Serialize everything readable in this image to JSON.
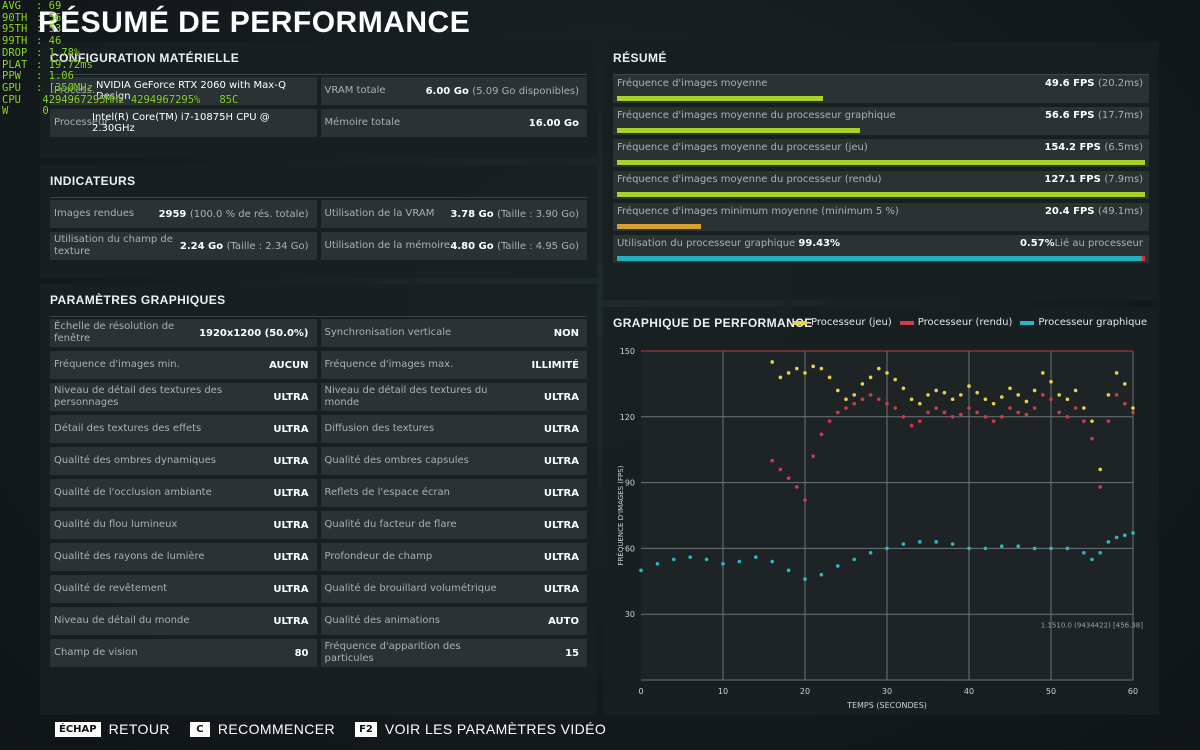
{
  "page_title": "RÉSUMÉ DE PERFORMANCE",
  "overlay": [
    {
      "k": "AVG",
      "v": ": 69"
    },
    {
      "k": "90TH",
      "v": ": 56"
    },
    {
      "k": "95TH",
      "v": ": 53"
    },
    {
      "k": "99TH",
      "v": ": 46"
    },
    {
      "k": "DROP",
      "v": ": 1.78%"
    },
    {
      "k": "PLAT",
      "v": ": 19.72ms"
    },
    {
      "k": "PPW",
      "v": ": 1.06"
    },
    {
      "k": "GPU",
      "v": ": [35ØMHz"
    },
    {
      "k": "CPU",
      "v": " 4294967295MHz 4294967295%   85C"
    },
    {
      "k": "W",
      "v": " 0"
    }
  ],
  "hardware": {
    "title": "CONFIGURATION MATÉRIELLE",
    "gpu_label": "Process.",
    "gpu_value": "NVIDIA GeForce RTX 2060 with Max-Q Design",
    "cpu_label": "Processeur",
    "cpu_value": "Intel(R) Core(TM) i7-10875H CPU @ 2.30GHz",
    "vram_label": "VRAM totale",
    "vram_value": "6.00 Go",
    "vram_sub": "(5.09 Go disponibles)",
    "mem_label": "Mémoire totale",
    "mem_value": "16.00 Go"
  },
  "indicators": {
    "title": "INDICATEURS",
    "frames_label": "Images rendues",
    "frames_value": "2959",
    "frames_sub": "(100.0 % de rés. totale)",
    "vram_use_label": "Utilisation de la VRAM",
    "vram_use_value": "3.78 Go",
    "vram_use_sub": "(Taille : 3.90 Go)",
    "tex_label": "Utilisation du champ de texture",
    "tex_value": "2.24 Go",
    "tex_sub": "(Taille : 2.34 Go)",
    "mem_use_label": "Utilisation de la mémoire",
    "mem_use_value": "4.80 Go",
    "mem_use_sub": "(Taille : 4.95 Go)"
  },
  "settings": {
    "title": "PARAMÈTRES GRAPHIQUES",
    "rows": [
      [
        {
          "label": "Échelle de résolution de fenêtre",
          "value": "1920x1200 (50.0%)"
        },
        {
          "label": "Synchronisation verticale",
          "value": "NON"
        }
      ],
      [
        {
          "label": "Fréquence d'images min.",
          "value": "AUCUN"
        },
        {
          "label": "Fréquence d'images max.",
          "value": "ILLIMITÉ"
        }
      ],
      [
        {
          "label": "Niveau de détail des textures des personnages",
          "value": "ULTRA"
        },
        {
          "label": "Niveau de détail des textures du monde",
          "value": "ULTRA"
        }
      ],
      [
        {
          "label": "Détail des textures des effets",
          "value": "ULTRA"
        },
        {
          "label": "Diffusion des textures",
          "value": "ULTRA"
        }
      ],
      [
        {
          "label": "Qualité des ombres dynamiques",
          "value": "ULTRA"
        },
        {
          "label": "Qualité des ombres capsules",
          "value": "ULTRA"
        }
      ],
      [
        {
          "label": "Qualité de l'occlusion ambiante",
          "value": "ULTRA"
        },
        {
          "label": "Reflets de l'espace écran",
          "value": "ULTRA"
        }
      ],
      [
        {
          "label": "Qualité du flou lumineux",
          "value": "ULTRA"
        },
        {
          "label": "Qualité du facteur de flare",
          "value": "ULTRA"
        }
      ],
      [
        {
          "label": "Qualité des rayons de lumière",
          "value": "ULTRA"
        },
        {
          "label": "Profondeur de champ",
          "value": "ULTRA"
        }
      ],
      [
        {
          "label": "Qualité de revêtement",
          "value": "ULTRA"
        },
        {
          "label": "Qualité de brouillard volumétrique",
          "value": "ULTRA"
        }
      ],
      [
        {
          "label": "Niveau de détail du monde",
          "value": "ULTRA"
        },
        {
          "label": "Qualité des animations",
          "value": "AUTO"
        }
      ],
      [
        {
          "label": "Champ de vision",
          "value": "80"
        },
        {
          "label": "Fréquence d'apparition des particules",
          "value": "15"
        }
      ]
    ]
  },
  "summary": {
    "title": "RÉSUMÉ",
    "rows": [
      {
        "label": "Fréquence d'images moyenne",
        "value": "49.6 FPS",
        "sub": "(20.2ms)",
        "fill": 0.39,
        "color": "#a8d12b"
      },
      {
        "label": "Fréquence d'images moyenne du processeur graphique",
        "value": "56.6 FPS",
        "sub": "(17.7ms)",
        "fill": 0.46,
        "color": "#a8d12b"
      },
      {
        "label": "Fréquence d'images moyenne du processeur (jeu)",
        "value": "154.2 FPS",
        "sub": "(6.5ms)",
        "fill": 1.0,
        "color": "#a8d12b"
      },
      {
        "label": "Fréquence d'images moyenne du processeur (rendu)",
        "value": "127.1 FPS",
        "sub": "(7.9ms)",
        "fill": 1.0,
        "color": "#a8d12b"
      },
      {
        "label": "Fréquence d'images minimum moyenne (minimum 5 %)",
        "value": "20.4 FPS",
        "sub": "(49.1ms)",
        "fill": 0.16,
        "color": "#d9a02e"
      }
    ],
    "gpu_row": {
      "label": "Utilisation du processeur graphique",
      "pct": "99.43%",
      "bound_pct": "0.57%",
      "bound_label": "Lié au processeur",
      "fill": 0.9943,
      "color": "#22b0c2",
      "bound_color": "#d2333f"
    }
  },
  "chart_data": {
    "type": "scatter",
    "title": "GRAPHIQUE DE PERFORMANCE",
    "xlabel": "TEMPS (SECONDES)",
    "ylabel": "FRÉQUENCE D'IMAGES (FPS)",
    "xlim": [
      0,
      60
    ],
    "ylim": [
      0,
      150
    ],
    "x_ticks": [
      0,
      10,
      20,
      30,
      40,
      50,
      60
    ],
    "y_ticks": [
      30,
      60,
      90,
      120,
      150
    ],
    "grid": true,
    "legend_position": "top-right",
    "footnote": "1.1510.0 (9434422) [456.38]",
    "series": [
      {
        "name": "Processeur (jeu)",
        "color": "#e8d04a",
        "x": [
          16,
          17,
          18,
          19,
          20,
          21,
          22,
          23,
          24,
          25,
          26,
          27,
          28,
          29,
          30,
          31,
          32,
          33,
          34,
          35,
          36,
          37,
          38,
          39,
          40,
          41,
          42,
          43,
          44,
          45,
          46,
          47,
          48,
          49,
          50,
          51,
          52,
          53,
          54,
          55,
          56,
          57,
          58,
          59,
          60
        ],
        "y": [
          145,
          138,
          140,
          142,
          140,
          143,
          142,
          138,
          132,
          128,
          130,
          135,
          138,
          142,
          140,
          137,
          133,
          128,
          126,
          130,
          132,
          131,
          128,
          130,
          134,
          131,
          128,
          126,
          129,
          133,
          130,
          127,
          132,
          140,
          136,
          130,
          128,
          132,
          124,
          118,
          96,
          130,
          140,
          135,
          124
        ]
      },
      {
        "name": "Processeur (rendu)",
        "color": "#d23a4a",
        "x": [
          16,
          17,
          18,
          19,
          20,
          21,
          22,
          23,
          24,
          25,
          26,
          27,
          28,
          29,
          30,
          31,
          32,
          33,
          34,
          35,
          36,
          37,
          38,
          39,
          40,
          41,
          42,
          43,
          44,
          45,
          46,
          47,
          48,
          49,
          50,
          51,
          52,
          53,
          54,
          55,
          56,
          57,
          58,
          59,
          60
        ],
        "y": [
          100,
          96,
          92,
          88,
          82,
          102,
          112,
          118,
          122,
          124,
          126,
          128,
          130,
          128,
          126,
          124,
          120,
          116,
          118,
          122,
          124,
          122,
          120,
          121,
          124,
          122,
          120,
          118,
          120,
          124,
          122,
          121,
          124,
          130,
          128,
          122,
          120,
          124,
          118,
          110,
          88,
          118,
          130,
          126,
          122
        ]
      },
      {
        "name": "Processeur graphique",
        "color": "#2bb7c8",
        "x": [
          0,
          2,
          4,
          6,
          8,
          10,
          12,
          14,
          16,
          18,
          20,
          22,
          24,
          26,
          28,
          30,
          32,
          34,
          36,
          38,
          40,
          42,
          44,
          46,
          48,
          50,
          52,
          54,
          55,
          56,
          57,
          58,
          59,
          60
        ],
        "y": [
          50,
          53,
          55,
          56,
          55,
          53,
          54,
          56,
          54,
          50,
          46,
          48,
          52,
          55,
          58,
          60,
          62,
          63,
          63,
          62,
          60,
          60,
          61,
          61,
          60,
          60,
          60,
          58,
          55,
          58,
          63,
          65,
          66,
          67
        ]
      }
    ]
  },
  "footer": [
    {
      "key": "ÉCHAP",
      "label": "RETOUR"
    },
    {
      "key": "C",
      "label": "RECOMMENCER"
    },
    {
      "key": "F2",
      "label": "VOIR LES PARAMÈTRES VIDÉO"
    }
  ]
}
